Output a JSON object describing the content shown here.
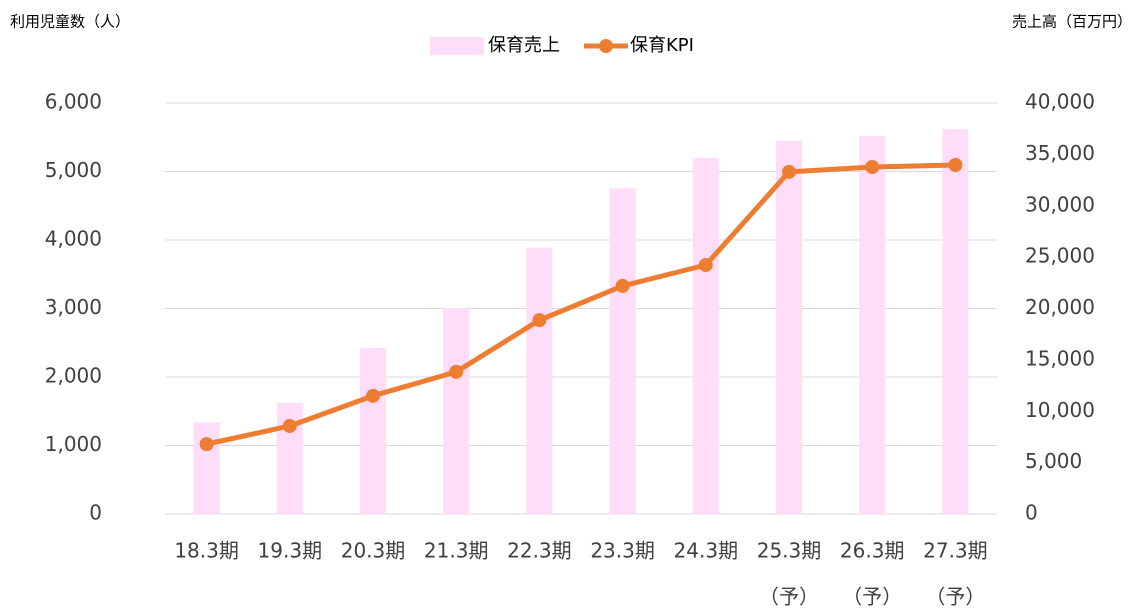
{
  "chart_data": {
    "type": "bar-line",
    "y_label": "利用児童数（人）",
    "y2_label": "売上高（百万円）",
    "categories": [
      "18.3期",
      "19.3期",
      "20.3期",
      "21.3期",
      "22.3期",
      "23.3期",
      "24.3期",
      "25.3期",
      "26.3期",
      "27.3期"
    ],
    "category_sublabels": [
      null,
      null,
      null,
      null,
      null,
      null,
      null,
      "（予）",
      "（予）",
      "（予）"
    ],
    "series": [
      {
        "name": "保育売上",
        "type": "bar",
        "axis": "y2",
        "color": "#ffdcf8",
        "values": [
          8900,
          10800,
          16150,
          20050,
          25900,
          31700,
          34650,
          36300,
          36800,
          37450
        ]
      },
      {
        "name": "保育KPI",
        "type": "line",
        "axis": "y",
        "color": "#ed7d31",
        "values": [
          1020,
          1285,
          1725,
          2075,
          2830,
          3330,
          3635,
          4995,
          5065,
          5095
        ]
      }
    ],
    "ylim": [
      0,
      6000
    ],
    "yticks": [
      {
        "value": 0,
        "label": "0"
      },
      {
        "value": 1000,
        "label": "1,000"
      },
      {
        "value": 2000,
        "label": "2,000"
      },
      {
        "value": 3000,
        "label": "3,000"
      },
      {
        "value": 4000,
        "label": "4,000"
      },
      {
        "value": 5000,
        "label": "5,000"
      },
      {
        "value": 6000,
        "label": "6,000"
      }
    ],
    "y2lim": [
      0,
      40000
    ],
    "y2ticks": [
      {
        "value": 0,
        "label": "0"
      },
      {
        "value": 5000,
        "label": "5,000"
      },
      {
        "value": 10000,
        "label": "10,000"
      },
      {
        "value": 15000,
        "label": "15,000"
      },
      {
        "value": 20000,
        "label": "20,000"
      },
      {
        "value": 25000,
        "label": "25,000"
      },
      {
        "value": 30000,
        "label": "30,000"
      },
      {
        "value": 35000,
        "label": "35,000"
      },
      {
        "value": 40000,
        "label": "40,000"
      }
    ],
    "grid": true,
    "legend": "top"
  }
}
